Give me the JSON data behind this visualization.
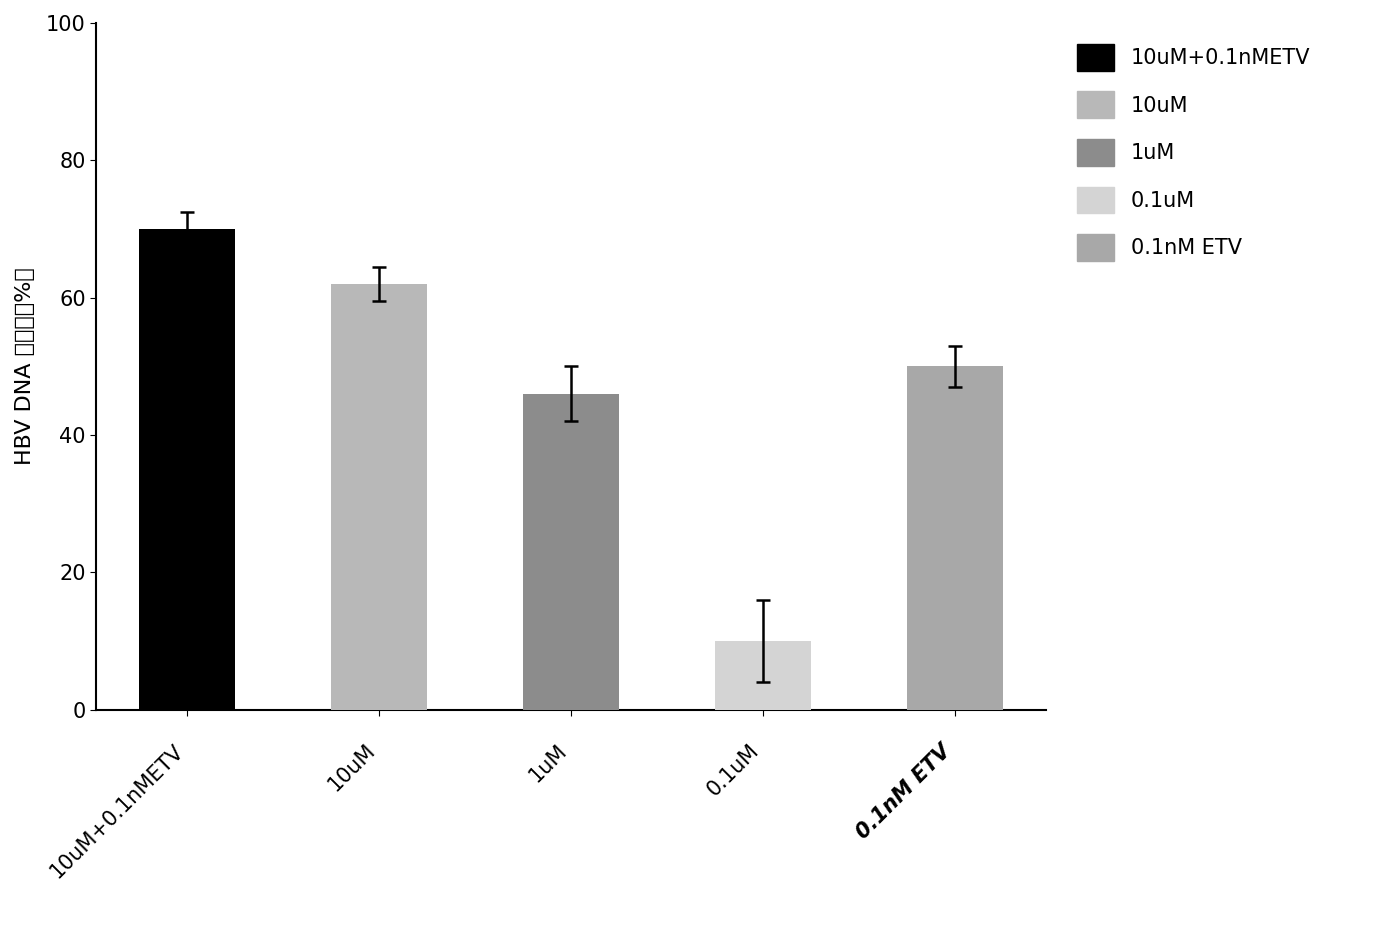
{
  "categories": [
    "10uM+0.1nMETV",
    "10uM",
    "1uM",
    "0.1uM",
    "0.1nM ETV"
  ],
  "values": [
    70,
    62,
    46,
    10,
    50
  ],
  "errors": [
    2.5,
    2.5,
    4.0,
    6.0,
    3.0
  ],
  "bar_colors": [
    "#000000",
    "#b8b8b8",
    "#8c8c8c",
    "#d4d4d4",
    "#a8a8a8"
  ],
  "ylabel": "HBV DNA 抑制率（%）",
  "ylim": [
    0,
    100
  ],
  "yticks": [
    0,
    20,
    40,
    60,
    80,
    100
  ],
  "legend_labels": [
    "10uM+0.1nMETV",
    "10uM",
    "1uM",
    "0.1uM",
    "0.1nM ETV"
  ],
  "legend_colors": [
    "#000000",
    "#b8b8b8",
    "#8c8c8c",
    "#d4d4d4",
    "#a8a8a8"
  ],
  "background_color": "#ffffff",
  "axis_fontsize": 16,
  "tick_fontsize": 15,
  "legend_fontsize": 15,
  "bar_width": 0.5
}
